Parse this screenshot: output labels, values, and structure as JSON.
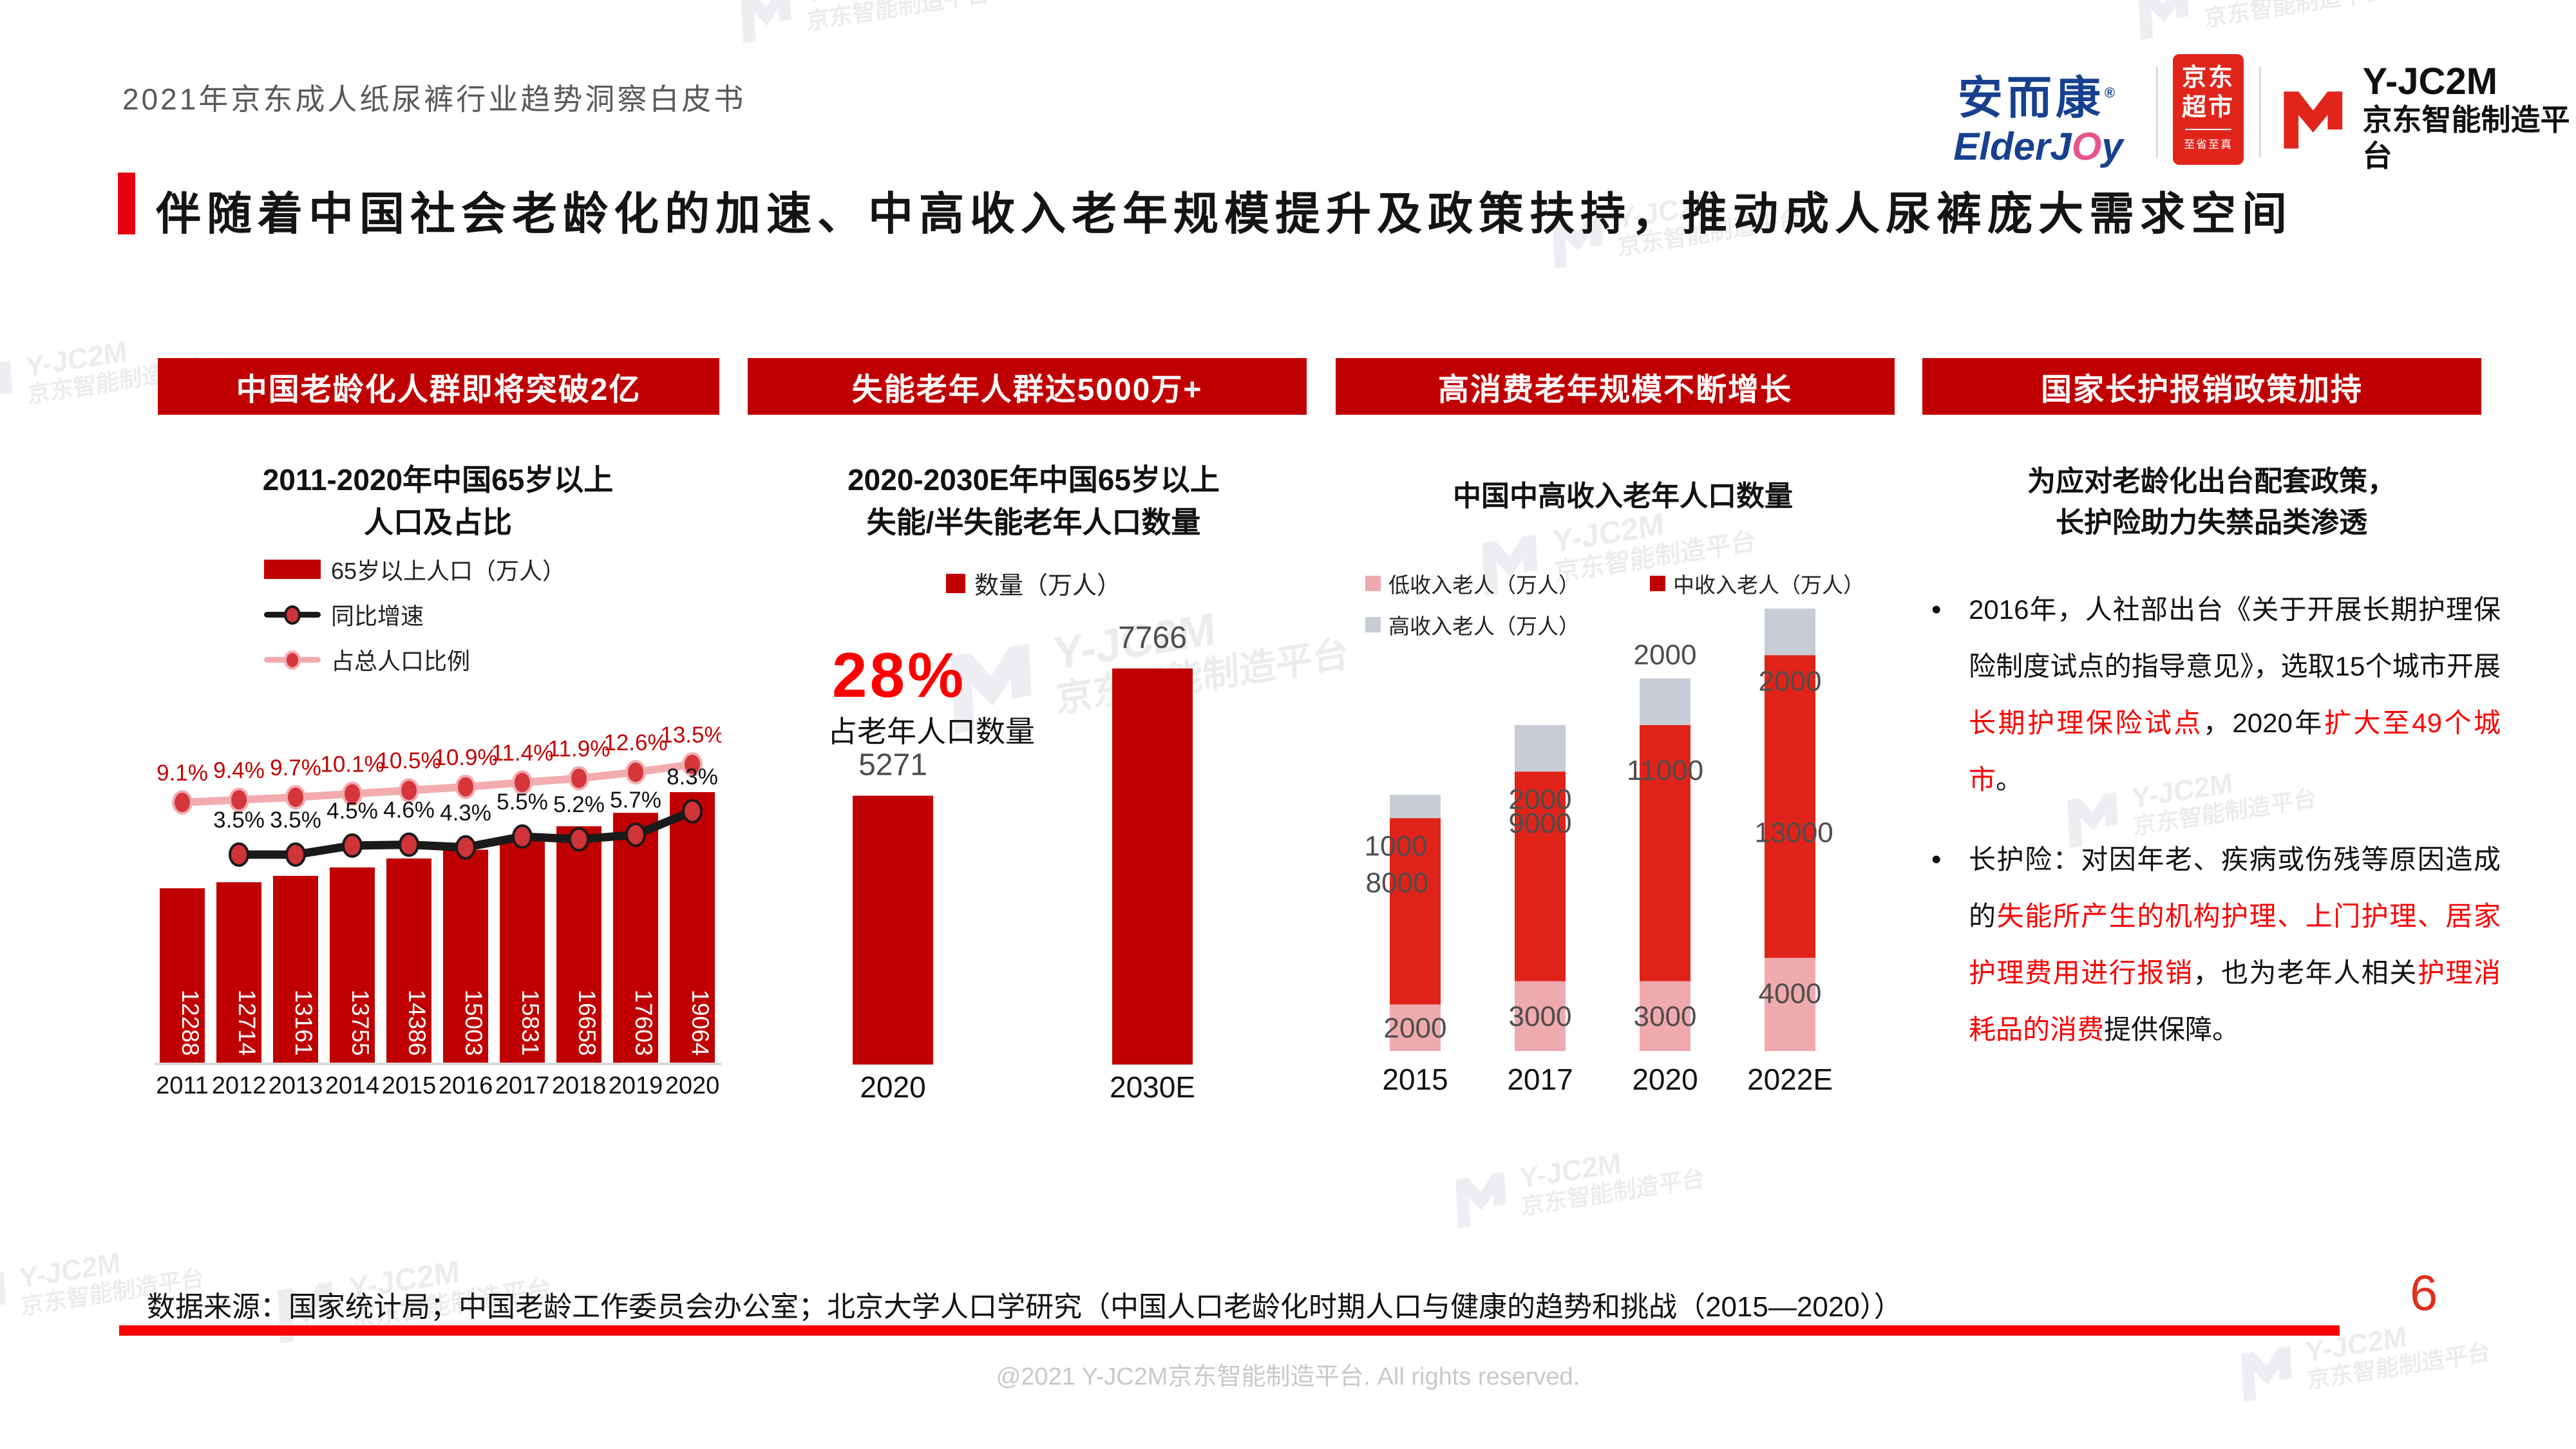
{
  "header": {
    "doc_title": "2021年京东成人纸尿裤行业趋势洞察白皮书",
    "headline": "伴随着中国社会老龄化的加速、中高收入老年规模提升及政策扶持，推动成人尿裤庞大需求空间"
  },
  "logos": {
    "elderjoy_cn": "安而康",
    "elderjoy_en_pre": "ElderJ",
    "elderjoy_en_o": "O",
    "elderjoy_en_post": "y",
    "jd_line1": "京东",
    "jd_line2": "超市",
    "jd_tagline": "至省至真",
    "yjc2m_code": "Y-JC2M",
    "yjc2m_name": "京东智能制造平台"
  },
  "banners": [
    "中国老龄化人群即将突破2亿",
    "失能老年人群达5000万+",
    "高消费老年规模不断增长",
    "国家长护报销政策加持"
  ],
  "policy": {
    "title_line1": "为应对老龄化出台配套政策，",
    "title_line2": "长护险助力失禁品类渗透",
    "bullets": [
      {
        "runs": [
          {
            "t": "2016年，人社部出台《关于开展长期护理保险制度试点的指导意见》，选取15个城市开展",
            "c": "k"
          },
          {
            "t": "长期护理保险试点",
            "c": "r"
          },
          {
            "t": "，2020年",
            "c": "k"
          },
          {
            "t": "扩大至49个城市",
            "c": "r"
          },
          {
            "t": "。",
            "c": "k"
          }
        ]
      },
      {
        "runs": [
          {
            "t": "长护险：对因年老、疾病或伤残等原因造成的",
            "c": "k"
          },
          {
            "t": "失能所产生的机构护理、上门护理、居家护理费用进行报销",
            "c": "r"
          },
          {
            "t": "，也为老年人相关",
            "c": "k"
          },
          {
            "t": "护理消耗品的消费",
            "c": "r"
          },
          {
            "t": "提供保障。",
            "c": "k"
          }
        ]
      }
    ]
  },
  "footer": {
    "source": "数据来源：国家统计局；中国老龄工作委员会办公室；北京大学人口学研究（中国人口老龄化时期人口与健康的趋势和挑战（2015—2020））",
    "page_number": "6",
    "copyright": "@2021 Y-JC2M京东智能制造平台. All rights reserved."
  },
  "watermark": {
    "code": "Y-JC2M",
    "name": "京东智能制造平台"
  },
  "colors": {
    "brand_red": "#c00000",
    "bright_red": "#fb0000",
    "stack_red": "#e02318",
    "stack_pink": "#efaaae",
    "stack_gray": "#c8ccd6",
    "accent_red": "#e60012"
  },
  "chart_data": [
    {
      "type": "bar",
      "subtype": "bar+line combo, dual axis",
      "title_lines": [
        "2011-2020年中国65岁以上",
        "人口及占比"
      ],
      "categories": [
        "2011",
        "2012",
        "2013",
        "2014",
        "2015",
        "2016",
        "2017",
        "2018",
        "2019",
        "2020"
      ],
      "series": [
        {
          "name": "65岁以上人口（万人）",
          "kind": "bar",
          "color": "#c00000",
          "values": [
            12288,
            12714,
            13161,
            13755,
            14386,
            15003,
            15831,
            16658,
            17603,
            19064
          ]
        },
        {
          "name": "同比增速",
          "kind": "line",
          "color": "#1a1a1a",
          "values": [
            null,
            3.5,
            3.5,
            4.5,
            4.6,
            4.3,
            5.5,
            5.2,
            5.7,
            8.3
          ],
          "labels": [
            "",
            "3.5%",
            "3.5%",
            "4.5%",
            "4.6%",
            "4.3%",
            "5.5%",
            "5.2%",
            "5.7%",
            "8.3%"
          ]
        },
        {
          "name": "占总人口比例",
          "kind": "line",
          "color": "#f2acb0",
          "values": [
            9.1,
            9.4,
            9.7,
            10.1,
            10.5,
            10.9,
            11.4,
            11.9,
            12.6,
            13.5
          ],
          "labels": [
            "9.1%",
            "9.4%",
            "9.7%",
            "10.1%",
            "10.5%",
            "10.9%",
            "11.4%",
            "11.9%",
            "12.6%",
            "13.5%"
          ]
        }
      ]
    },
    {
      "type": "bar",
      "title_lines": [
        "2020-2030E年中国65岁以上",
        "失能/半失能老年人口数量"
      ],
      "legend": "数量（万人）",
      "categories": [
        "2020",
        "2030E"
      ],
      "values": [
        5271,
        7766
      ],
      "bar_color": "#c00000",
      "callout_value": "28%",
      "callout_label": "占老年人口数量"
    },
    {
      "type": "bar",
      "subtype": "stacked",
      "title": "中国中高收入老年人口数量",
      "categories": [
        "2015",
        "2017",
        "2020",
        "2022E"
      ],
      "series": [
        {
          "name": "低收入老人（万人）",
          "color": "#efaaae",
          "values": [
            2000,
            3000,
            3000,
            4000
          ]
        },
        {
          "name": "中收入老人（万人）",
          "color": "#e02318",
          "values": [
            8000,
            9000,
            11000,
            13000
          ]
        },
        {
          "name": "高收入老人（万人）",
          "color": "#c8ccd6",
          "values": [
            1000,
            2000,
            2000,
            2000
          ]
        }
      ]
    }
  ]
}
